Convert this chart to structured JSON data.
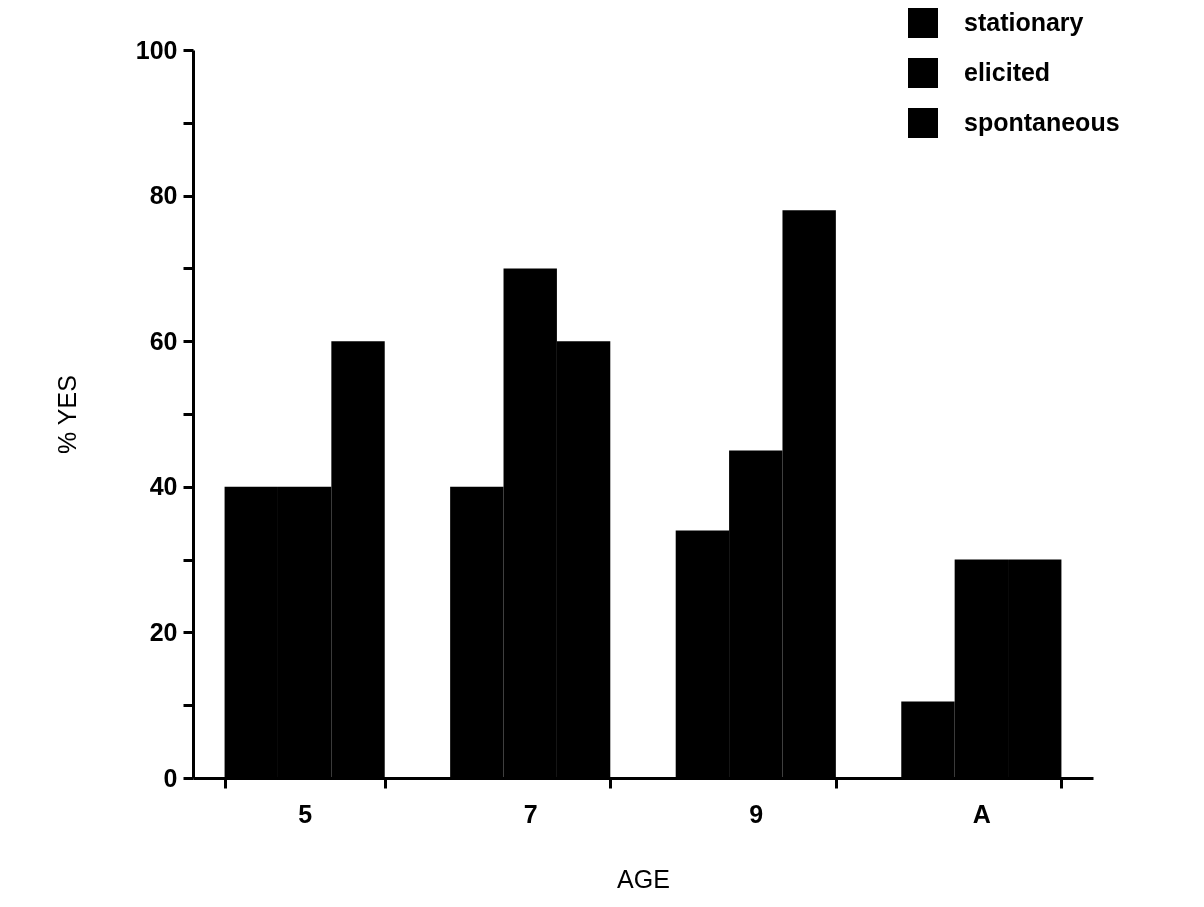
{
  "chart_data": {
    "type": "bar",
    "xlabel": "AGE",
    "ylabel": "% YES",
    "categories": [
      "5",
      "7",
      "9",
      "A"
    ],
    "series": [
      {
        "name": "stationary",
        "color": "#000000",
        "values": [
          40,
          40,
          34,
          10.5
        ]
      },
      {
        "name": "elicited",
        "color": "#000000",
        "values": [
          40,
          70,
          45,
          30
        ]
      },
      {
        "name": "spontaneous",
        "color": "#000000",
        "values": [
          60,
          60,
          78,
          30
        ]
      }
    ],
    "ylim": [
      0,
      100
    ],
    "yticks": [
      0,
      {
        "value": 10,
        "label": null
      },
      20,
      {
        "value": 30,
        "label": null
      },
      40,
      {
        "value": 50,
        "label": null
      },
      60,
      {
        "value": 70,
        "label": null
      },
      80,
      {
        "value": 90,
        "label": null
      },
      100
    ],
    "grid": false,
    "legend": "top right"
  }
}
